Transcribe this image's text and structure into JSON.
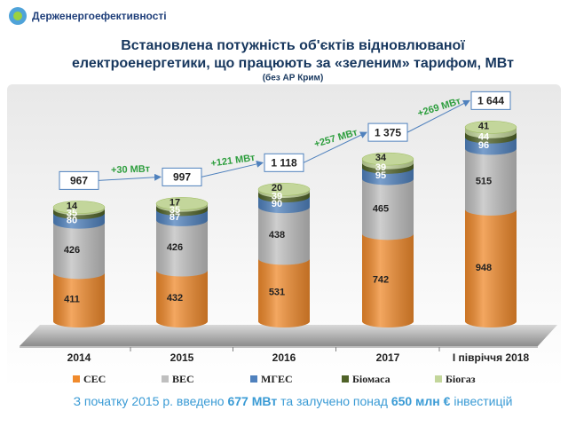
{
  "header": {
    "logo": "Держенергоефективності"
  },
  "chart_data": {
    "type": "stacked-cylinder",
    "title": "Встановлена потужність об'єктів відновлюваної",
    "title_line2": "електроенергетики, що працюють за «зеленим» тарифом, МВт",
    "subtitle": "(без АР Крим)",
    "categories": [
      "2014",
      "2015",
      "2016",
      "2017",
      "І півріччя 2018"
    ],
    "series": [
      {
        "name": "СЕС",
        "color": "#f08a2c",
        "values": [
          411,
          432,
          531,
          742,
          948
        ]
      },
      {
        "name": "ВЕС",
        "color": "#bfbfbf",
        "values": [
          426,
          426,
          438,
          465,
          515
        ]
      },
      {
        "name": "МГЕС",
        "color": "#4f81bd",
        "values": [
          80,
          87,
          90,
          95,
          96
        ]
      },
      {
        "name": "Біомаса",
        "color": "#4f6228",
        "values": [
          35,
          35,
          39,
          39,
          44
        ]
      },
      {
        "name": "Біогаз",
        "color": "#c3d69b",
        "values": [
          14,
          17,
          20,
          34,
          41
        ]
      }
    ],
    "totals": {
      "values": [
        967,
        997,
        1118,
        1375,
        1644
      ],
      "value_labels": [
        "967",
        "997",
        "1 118",
        "1 375",
        "1 644"
      ]
    },
    "annotations": [
      "+30 МВт",
      "+121 МВт",
      "+257 МВт",
      "+269 МВт"
    ],
    "legend": "bottom"
  },
  "footer": [
    "З початку 2015 р. введено ",
    "677 МВт",
    " та залучено понад ",
    "650 млн €",
    " інвестицій"
  ]
}
